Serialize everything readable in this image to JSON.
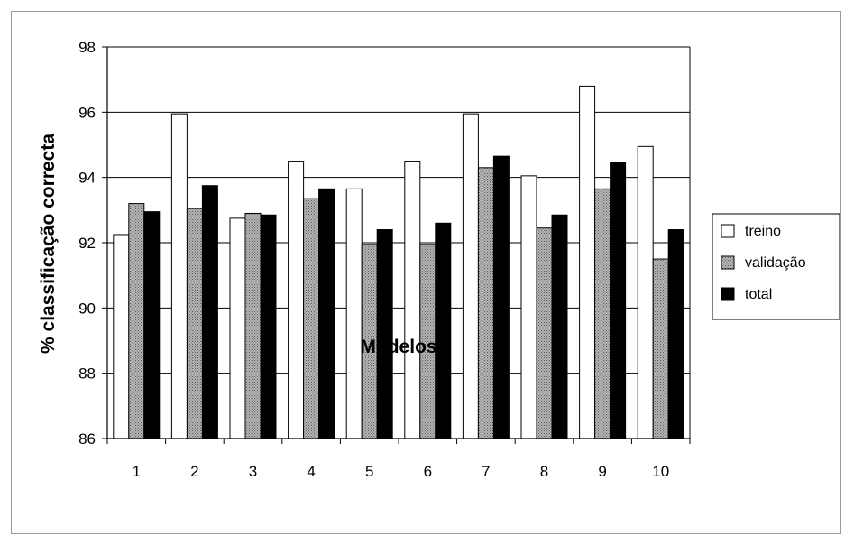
{
  "chart_data": {
    "type": "bar",
    "title": "",
    "xlabel": "Modelos",
    "ylabel": "% classificação correcta",
    "ylim": [
      86,
      98
    ],
    "yticks": [
      86,
      88,
      90,
      92,
      94,
      96,
      98
    ],
    "grid": true,
    "legend_position": "right",
    "categories": [
      "1",
      "2",
      "3",
      "4",
      "5",
      "6",
      "7",
      "8",
      "9",
      "10"
    ],
    "series": [
      {
        "name": "treino",
        "color": "#ffffff",
        "values": [
          92.25,
          95.95,
          92.75,
          94.5,
          93.65,
          94.5,
          95.95,
          94.05,
          96.8,
          94.95
        ]
      },
      {
        "name": "validação",
        "color": "#a0a0a0",
        "values": [
          93.2,
          93.05,
          92.9,
          93.35,
          91.95,
          91.95,
          94.3,
          92.45,
          93.65,
          91.5
        ]
      },
      {
        "name": "total",
        "color": "#000000",
        "values": [
          92.95,
          93.75,
          92.85,
          93.65,
          92.4,
          92.6,
          94.65,
          92.85,
          94.45,
          92.4
        ]
      }
    ]
  }
}
